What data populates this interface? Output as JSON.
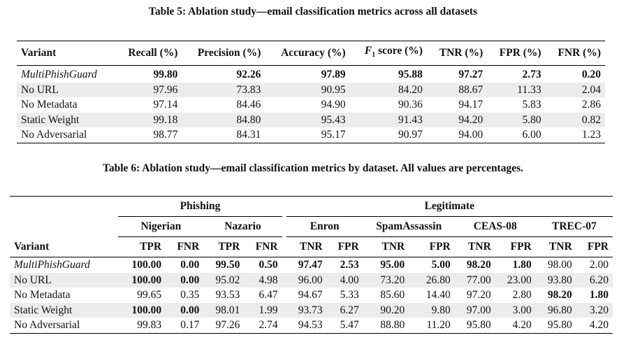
{
  "table5": {
    "caption": "Table 5: Ablation study—email classification metrics across all datasets",
    "headers": [
      "Variant",
      "Recall (%)",
      "Precision (%)",
      "Accuracy (%)",
      "F",
      "1",
      " score (%)",
      "TNR (%)",
      "FPR (%)",
      "FNR (%)"
    ],
    "rows": [
      [
        "MultiPhishGuard",
        "99.80",
        "92.26",
        "97.89",
        "95.88",
        "97.27",
        "2.73",
        "0.20"
      ],
      [
        "No URL",
        "97.96",
        "73.83",
        "90.95",
        "84.20",
        "88.67",
        "11.33",
        "2.04"
      ],
      [
        "No Metadata",
        "97.14",
        "84.46",
        "94.90",
        "90.36",
        "94.17",
        "5.83",
        "2.86"
      ],
      [
        "Static Weight",
        "99.18",
        "84.80",
        "95.43",
        "91.43",
        "94.20",
        "5.80",
        "0.82"
      ],
      [
        "No Adversarial",
        "98.77",
        "84.31",
        "95.17",
        "90.97",
        "94.00",
        "6.00",
        "1.23"
      ]
    ]
  },
  "table6": {
    "caption": "Table 6: Ablation study—email classification metrics by dataset. All values are percentages.",
    "groups": [
      "Phishing",
      "Legitimate"
    ],
    "datasets": [
      "Nigerian",
      "Nazario",
      "Enron",
      "SpamAssassin",
      "CEAS-08",
      "TREC-07"
    ],
    "variant_header": "Variant",
    "metrics": [
      "TPR",
      "FNR",
      "TPR",
      "FNR",
      "TNR",
      "FPR",
      "TNR",
      "FPR",
      "TNR",
      "FPR",
      "TNR",
      "FPR"
    ],
    "rows": [
      [
        "MultiPhishGuard",
        "100.00",
        "0.00",
        "99.50",
        "0.50",
        "97.47",
        "2.53",
        "95.00",
        "5.00",
        "98.20",
        "1.80",
        "98.00",
        "2.00"
      ],
      [
        "No URL",
        "100.00",
        "0.00",
        "95.02",
        "4.98",
        "96.00",
        "4.00",
        "73.20",
        "26.80",
        "77.00",
        "23.00",
        "93.80",
        "6.20"
      ],
      [
        "No Metadata",
        "99.65",
        "0.35",
        "93.53",
        "6.47",
        "94.67",
        "5.33",
        "85.60",
        "14.40",
        "97.20",
        "2.80",
        "98.20",
        "1.80"
      ],
      [
        "Static Weight",
        "100.00",
        "0.00",
        "98.01",
        "1.99",
        "93.73",
        "6.27",
        "90.20",
        "9.80",
        "97.00",
        "3.00",
        "96.80",
        "3.20"
      ],
      [
        "No Adversarial",
        "99.83",
        "0.17",
        "97.26",
        "2.74",
        "94.53",
        "5.47",
        "88.80",
        "11.20",
        "95.80",
        "4.20",
        "95.80",
        "4.20"
      ]
    ]
  }
}
